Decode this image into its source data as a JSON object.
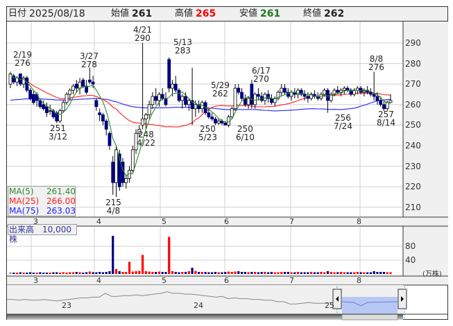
{
  "header": {
    "date_label": "日付",
    "date": "2025/08/18",
    "open_label": "始値",
    "open": "261",
    "high_label": "高値",
    "high": "265",
    "low_label": "安値",
    "low": "261",
    "close_label": "終値",
    "close": "262"
  },
  "colors": {
    "up": "#ffffff",
    "down": "#000080",
    "vol_up": "#ff0000",
    "vol_down": "#000080",
    "vol_flat": "#999999",
    "ma5": "#2e8b2e",
    "ma25": "#ff2020",
    "ma75": "#2020ff",
    "high_text": "#ff0000",
    "low_text": "#1a7a1a"
  },
  "ma_legend": [
    {
      "name": "MA(5)",
      "value": "261.40"
    },
    {
      "name": "MA(25)",
      "value": "266.00"
    },
    {
      "name": "MA(75)",
      "value": "263.03"
    }
  ],
  "volume_legend": "出来高　10,000株",
  "price_axis": [
    "290",
    "280",
    "270",
    "260",
    "250",
    "240",
    "230",
    "220",
    "210"
  ],
  "volume_axis": [
    "80",
    "40"
  ],
  "volume_unit": "(万株)",
  "month_labels": [
    "3",
    "4",
    "5",
    "6",
    "7",
    "8"
  ],
  "navigator_labels": [
    "23",
    "24",
    "25"
  ],
  "annotations": [
    {
      "date": "2/19",
      "price": "276"
    },
    {
      "date": "3/27",
      "price": "278"
    },
    {
      "date": "4/21",
      "price": "290"
    },
    {
      "date": "5/13",
      "price": "283"
    },
    {
      "date": "5/29",
      "price": "262"
    },
    {
      "date": "6/17",
      "price": "270"
    },
    {
      "date": "8/8",
      "price": "276"
    },
    {
      "date": "3/12",
      "price": "251"
    },
    {
      "date": "4/8",
      "price": "215"
    },
    {
      "date": "4/22",
      "price": "248"
    },
    {
      "date": "5/23",
      "price": "250"
    },
    {
      "date": "6/10",
      "price": "250"
    },
    {
      "date": "7/24",
      "price": "256"
    },
    {
      "date": "8/14",
      "price": "257"
    }
  ],
  "chart_data": {
    "type": "candlestick",
    "ylim": [
      205,
      300
    ],
    "ohlc": [
      [
        270,
        276,
        268,
        275
      ],
      [
        274,
        275,
        270,
        271
      ],
      [
        271,
        274,
        269,
        273
      ],
      [
        275,
        275,
        269,
        270
      ],
      [
        270,
        274,
        268,
        273
      ],
      [
        273,
        274,
        266,
        267
      ],
      [
        267,
        268,
        262,
        263
      ],
      [
        265,
        267,
        260,
        261
      ],
      [
        265,
        266,
        259,
        262
      ],
      [
        262,
        263,
        258,
        259
      ],
      [
        260,
        262,
        257,
        258
      ],
      [
        259,
        261,
        254,
        256
      ],
      [
        257,
        260,
        255,
        257
      ],
      [
        257,
        258,
        253,
        254
      ],
      [
        256,
        257,
        251,
        252
      ],
      [
        252,
        258,
        251,
        257
      ],
      [
        257,
        262,
        256,
        261
      ],
      [
        261,
        266,
        260,
        265
      ],
      [
        265,
        268,
        262,
        267
      ],
      [
        267,
        270,
        265,
        269
      ],
      [
        270,
        272,
        266,
        268
      ],
      [
        268,
        273,
        265,
        271
      ],
      [
        272,
        273,
        268,
        269
      ],
      [
        269,
        272,
        265,
        266
      ],
      [
        272,
        278,
        270,
        271
      ],
      [
        271,
        274,
        268,
        270
      ],
      [
        262,
        263,
        257,
        259
      ],
      [
        256,
        258,
        252,
        255
      ],
      [
        255,
        256,
        250,
        252
      ],
      [
        252,
        253,
        245,
        248
      ],
      [
        246,
        247,
        238,
        240
      ],
      [
        232,
        235,
        216,
        222
      ],
      [
        222,
        240,
        215,
        238
      ],
      [
        236,
        238,
        218,
        220
      ],
      [
        232,
        234,
        220,
        222
      ],
      [
        222,
        226,
        219,
        224
      ],
      [
        224,
        230,
        222,
        228
      ],
      [
        228,
        240,
        227,
        238
      ],
      [
        238,
        248,
        236,
        246
      ],
      [
        246,
        250,
        244,
        248
      ],
      [
        250,
        290,
        248,
        253
      ],
      [
        253,
        256,
        248,
        255
      ],
      [
        255,
        262,
        253,
        260
      ],
      [
        260,
        266,
        258,
        264
      ],
      [
        264,
        268,
        260,
        262
      ],
      [
        262,
        266,
        259,
        265
      ],
      [
        265,
        268,
        262,
        263
      ],
      [
        263,
        266,
        259,
        260
      ],
      [
        282,
        283,
        266,
        268
      ],
      [
        268,
        272,
        264,
        270
      ],
      [
        270,
        274,
        266,
        267
      ],
      [
        267,
        268,
        261,
        262
      ],
      [
        262,
        265,
        258,
        264
      ],
      [
        264,
        266,
        259,
        260
      ],
      [
        260,
        263,
        257,
        262
      ],
      [
        262,
        278,
        250,
        258
      ],
      [
        258,
        262,
        254,
        260
      ],
      [
        260,
        262,
        256,
        258
      ],
      [
        258,
        262,
        256,
        261
      ],
      [
        261,
        262,
        255,
        256
      ],
      [
        256,
        258,
        253,
        254
      ],
      [
        254,
        256,
        252,
        253
      ],
      [
        253,
        254,
        250,
        251
      ],
      [
        251,
        253,
        250,
        252
      ],
      [
        252,
        253,
        250,
        251
      ],
      [
        251,
        252,
        250,
        250
      ],
      [
        250,
        255,
        249,
        254
      ],
      [
        254,
        259,
        253,
        258
      ],
      [
        258,
        270,
        257,
        268
      ],
      [
        268,
        270,
        265,
        266
      ],
      [
        266,
        268,
        262,
        263
      ],
      [
        263,
        265,
        259,
        260
      ],
      [
        260,
        264,
        258,
        263
      ],
      [
        270,
        272,
        258,
        260
      ],
      [
        260,
        266,
        258,
        265
      ],
      [
        265,
        268,
        262,
        264
      ],
      [
        264,
        266,
        261,
        262
      ],
      [
        262,
        266,
        260,
        265
      ],
      [
        265,
        267,
        261,
        263
      ],
      [
        263,
        265,
        260,
        261
      ],
      [
        261,
        264,
        259,
        263
      ],
      [
        263,
        267,
        262,
        266
      ],
      [
        266,
        270,
        264,
        268
      ],
      [
        268,
        270,
        265,
        266
      ],
      [
        266,
        268,
        263,
        264
      ],
      [
        264,
        267,
        262,
        266
      ],
      [
        266,
        268,
        263,
        265
      ],
      [
        265,
        268,
        263,
        267
      ],
      [
        267,
        268,
        264,
        265
      ],
      [
        265,
        267,
        262,
        264
      ],
      [
        264,
        266,
        261,
        263
      ],
      [
        263,
        266,
        262,
        265
      ],
      [
        265,
        267,
        263,
        264
      ],
      [
        264,
        266,
        262,
        263
      ],
      [
        263,
        266,
        262,
        265
      ],
      [
        265,
        268,
        264,
        267
      ],
      [
        267,
        268,
        256,
        262
      ],
      [
        262,
        266,
        261,
        265
      ],
      [
        265,
        268,
        264,
        267
      ],
      [
        267,
        269,
        265,
        266
      ],
      [
        266,
        268,
        264,
        267
      ],
      [
        267,
        269,
        265,
        268
      ],
      [
        268,
        269,
        266,
        267
      ],
      [
        267,
        268,
        264,
        265
      ],
      [
        265,
        268,
        264,
        267
      ],
      [
        267,
        269,
        265,
        268
      ],
      [
        268,
        269,
        265,
        266
      ],
      [
        266,
        268,
        264,
        267
      ],
      [
        267,
        269,
        265,
        266
      ],
      [
        266,
        268,
        264,
        265
      ],
      [
        265,
        276,
        262,
        264
      ],
      [
        264,
        266,
        260,
        262
      ],
      [
        262,
        264,
        259,
        260
      ],
      [
        260,
        262,
        257,
        258
      ],
      [
        258,
        262,
        257,
        261
      ],
      [
        261,
        265,
        261,
        262
      ]
    ],
    "volume": [
      5,
      4,
      4,
      5,
      4,
      4,
      5,
      4,
      4,
      5,
      4,
      4,
      4,
      5,
      5,
      4,
      5,
      4,
      5,
      5,
      6,
      5,
      4,
      5,
      7,
      5,
      5,
      6,
      5,
      6,
      8,
      110,
      14,
      8,
      6,
      6,
      35,
      7,
      8,
      9,
      55,
      8,
      7,
      6,
      6,
      7,
      6,
      6,
      107,
      8,
      6,
      5,
      6,
      6,
      8,
      18,
      9,
      6,
      6,
      6,
      5,
      5,
      6,
      5,
      5,
      6,
      7,
      6,
      7,
      8,
      6,
      6,
      5,
      6,
      6,
      5,
      6,
      6,
      5,
      6,
      5,
      5,
      6,
      6,
      6,
      5,
      5,
      6,
      5,
      5,
      5,
      6,
      5,
      5,
      6,
      5,
      8,
      6,
      5,
      5,
      6,
      5,
      5,
      5,
      5,
      6,
      5,
      5,
      5,
      5,
      8,
      6,
      6,
      6,
      5,
      5
    ],
    "navigator_series": [
      258,
      258,
      257,
      258,
      257,
      257,
      258,
      257,
      256,
      257,
      258,
      259,
      260,
      260,
      261,
      261,
      266,
      262,
      262,
      263,
      263,
      264,
      263,
      264,
      265,
      266,
      268,
      266,
      266,
      265,
      265,
      264,
      263,
      262,
      261,
      262,
      259,
      260,
      259,
      259,
      258,
      258,
      257,
      257,
      255,
      255,
      252,
      252,
      253,
      254,
      253,
      253,
      253,
      254
    ]
  }
}
